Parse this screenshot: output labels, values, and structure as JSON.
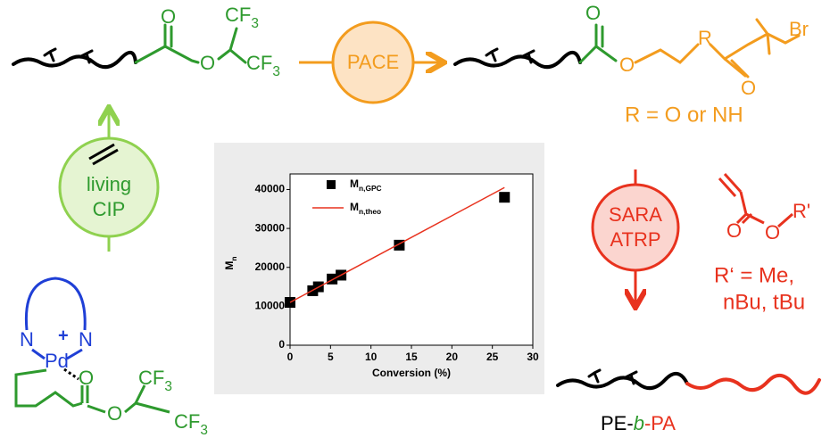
{
  "top_left": {
    "carbonyl_o": "O",
    "ester_o": "O",
    "cf3": "CF3"
  },
  "pace": {
    "label": "PACE"
  },
  "top_right": {
    "carbonyl_o": "O",
    "ester_o": "O",
    "r": "R",
    "br": "Br",
    "keto_o": "O",
    "r_def": "R = O or NH"
  },
  "cip": {
    "line1": "living",
    "line2": "CIP"
  },
  "catalyst": {
    "n": "N",
    "plus": "+",
    "pd": "Pd",
    "o": "O",
    "cf3": "CF3"
  },
  "sara": {
    "line1": "SARA",
    "line2": "ATRP"
  },
  "monomer": {
    "o": "O",
    "r": "R'",
    "r_def1": "R‘ = Me,",
    "r_def2": "nBu, tBu"
  },
  "product": {
    "label": "PE-b-PA"
  },
  "chart_data": {
    "type": "scatter",
    "x_label": "Conversion (%)",
    "y_label": "Mn",
    "xlim": [
      0,
      30
    ],
    "ylim": [
      0,
      44000
    ],
    "xticks": [
      0,
      5,
      10,
      15,
      20,
      25,
      30
    ],
    "yticks": [
      0,
      10000,
      20000,
      30000,
      40000
    ],
    "series": [
      {
        "name": "Mn,GPC",
        "color": "#000000",
        "x": [
          0,
          2.8,
          3.5,
          5.2,
          6.3,
          13.5,
          26.5
        ],
        "values": [
          11000,
          14000,
          15000,
          17000,
          18000,
          25700,
          38000
        ]
      },
      {
        "name": "Mn,theo",
        "color": "#e8321e",
        "x": [
          0,
          26.5
        ],
        "values": [
          11000,
          40500
        ]
      }
    ]
  }
}
